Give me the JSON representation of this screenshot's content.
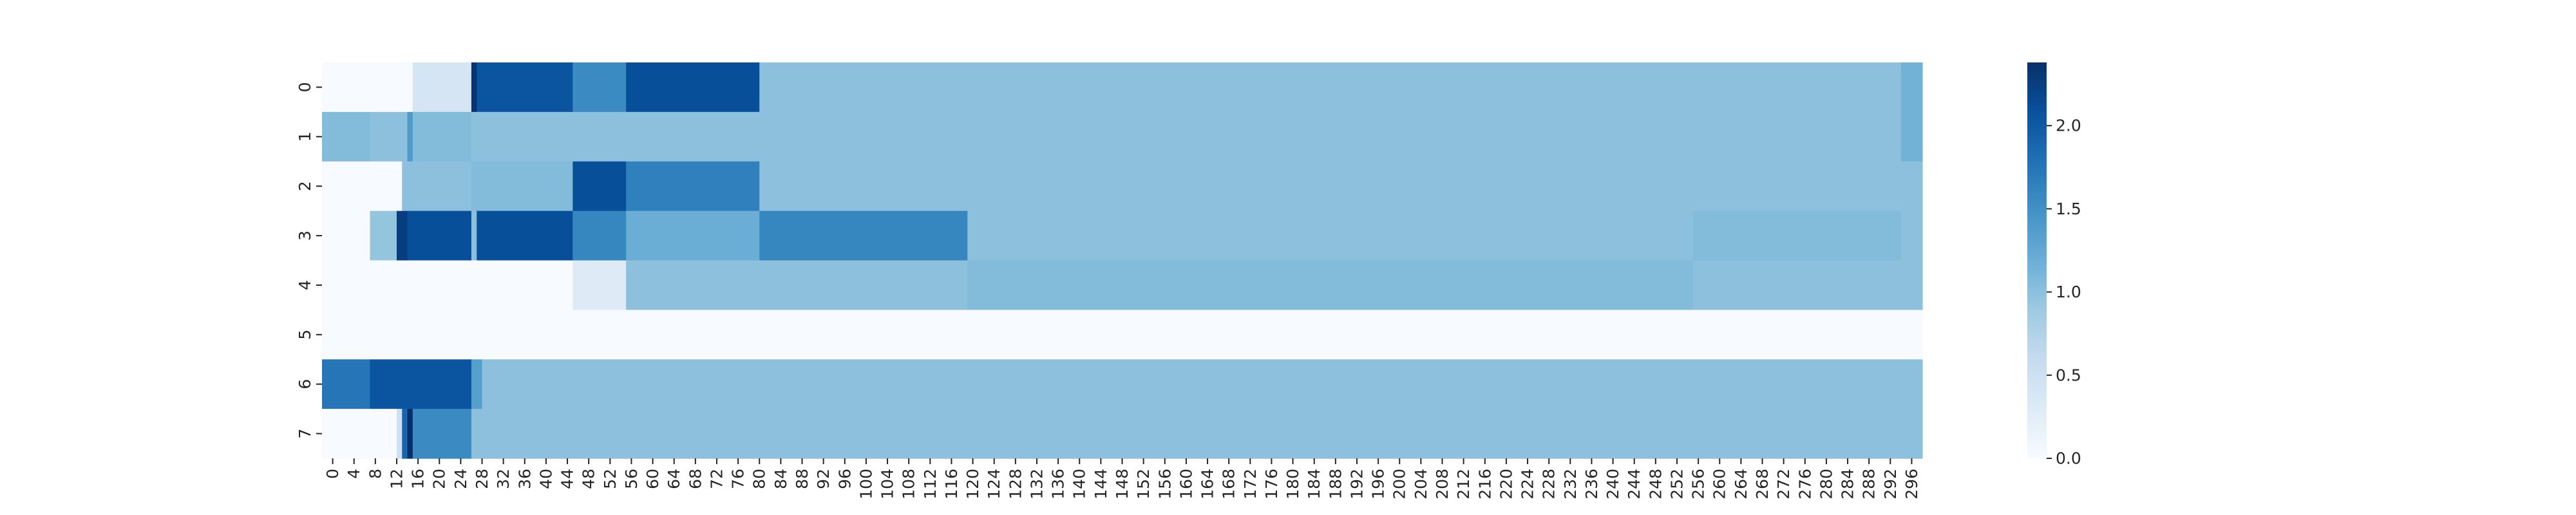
{
  "chart_data": {
    "type": "heatmap",
    "title": "",
    "xlabel": "",
    "ylabel": "",
    "x_range": [
      0,
      300
    ],
    "x_tick_step": 4,
    "x_ticks": [
      0,
      4,
      8,
      12,
      16,
      20,
      24,
      28,
      32,
      36,
      40,
      44,
      48,
      52,
      56,
      60,
      64,
      68,
      72,
      76,
      80,
      84,
      88,
      92,
      96,
      100,
      104,
      108,
      112,
      116,
      120,
      124,
      128,
      132,
      136,
      140,
      144,
      148,
      152,
      156,
      160,
      164,
      168,
      172,
      176,
      180,
      184,
      188,
      192,
      196,
      200,
      204,
      208,
      212,
      216,
      220,
      224,
      228,
      232,
      236,
      240,
      244,
      248,
      252,
      256,
      260,
      264,
      268,
      272,
      276,
      280,
      284,
      288,
      292,
      296
    ],
    "y_ticks": [
      "0",
      "1",
      "2",
      "3",
      "4",
      "5",
      "6",
      "7"
    ],
    "colormap": "Blues",
    "colors": [
      "#f7fbff",
      "#deebf7",
      "#c6dbef",
      "#9ecae1",
      "#6baed6",
      "#4292c6",
      "#2171b5",
      "#08519c",
      "#08306b"
    ],
    "color_range": [
      0,
      2.38
    ],
    "colorbar_ticks": [
      "0.0",
      "0.5",
      "1.0",
      "1.5",
      "2.0"
    ],
    "rows": [
      {
        "row": "0",
        "segments": [
          [
            0,
            17,
            0.0
          ],
          [
            17,
            28,
            0.4
          ],
          [
            28,
            29,
            2.35
          ],
          [
            29,
            47,
            2.05
          ],
          [
            47,
            57,
            1.55
          ],
          [
            57,
            82,
            2.1
          ],
          [
            82,
            296,
            1.0
          ],
          [
            296,
            300,
            1.15
          ]
        ]
      },
      {
        "row": "1",
        "segments": [
          [
            0,
            9,
            1.05
          ],
          [
            9,
            16,
            1.0
          ],
          [
            16,
            17,
            1.4
          ],
          [
            17,
            28,
            1.05
          ],
          [
            28,
            296,
            1.0
          ],
          [
            296,
            300,
            1.15
          ]
        ]
      },
      {
        "row": "2",
        "segments": [
          [
            0,
            15,
            0.0
          ],
          [
            15,
            28,
            1.0
          ],
          [
            28,
            47,
            1.05
          ],
          [
            47,
            57,
            2.1
          ],
          [
            57,
            82,
            1.65
          ],
          [
            82,
            300,
            1.0
          ]
        ]
      },
      {
        "row": "3",
        "segments": [
          [
            0,
            9,
            0.0
          ],
          [
            9,
            14,
            0.95
          ],
          [
            14,
            16,
            2.25
          ],
          [
            16,
            28,
            2.1
          ],
          [
            28,
            29,
            1.0
          ],
          [
            29,
            47,
            2.1
          ],
          [
            47,
            57,
            1.6
          ],
          [
            57,
            82,
            1.2
          ],
          [
            82,
            121,
            1.6
          ],
          [
            121,
            257,
            1.0
          ],
          [
            257,
            296,
            1.05
          ],
          [
            296,
            300,
            1.0
          ]
        ]
      },
      {
        "row": "4",
        "segments": [
          [
            0,
            47,
            0.0
          ],
          [
            47,
            57,
            0.3
          ],
          [
            57,
            121,
            1.0
          ],
          [
            121,
            257,
            1.05
          ],
          [
            257,
            300,
            1.0
          ]
        ]
      },
      {
        "row": "5",
        "segments": [
          [
            0,
            300,
            0.0
          ]
        ]
      },
      {
        "row": "6",
        "segments": [
          [
            0,
            9,
            1.75
          ],
          [
            9,
            28,
            2.05
          ],
          [
            28,
            30,
            1.35
          ],
          [
            30,
            300,
            1.0
          ]
        ]
      },
      {
        "row": "7",
        "segments": [
          [
            0,
            14,
            0.0
          ],
          [
            14,
            15,
            0.5
          ],
          [
            15,
            16,
            1.9
          ],
          [
            16,
            17,
            2.38
          ],
          [
            17,
            28,
            1.55
          ],
          [
            28,
            300,
            1.0
          ]
        ]
      }
    ]
  }
}
